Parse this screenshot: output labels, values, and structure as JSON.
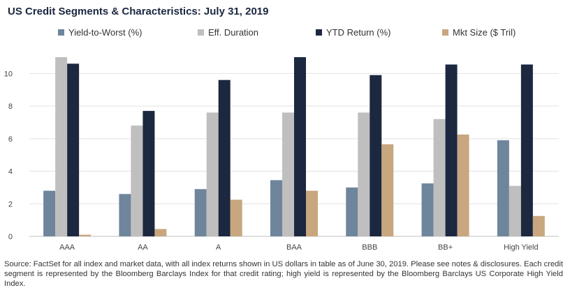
{
  "chart_data": {
    "type": "bar",
    "title": "US Credit Segments & Characteristics: July 31, 2019",
    "xlabel": "",
    "ylabel": "",
    "ylim": [
      0,
      11
    ],
    "yticks": [
      "0",
      "2",
      "4",
      "6",
      "8",
      "10"
    ],
    "grid": true,
    "legend_position": "top",
    "categories": [
      "AAA",
      "AA",
      "A",
      "BAA",
      "BBB",
      "BB+",
      "High Yield"
    ],
    "series": [
      {
        "name": "Yield-to-Worst (%)",
        "color": "#6f859c",
        "values": [
          2.8,
          2.6,
          2.9,
          3.45,
          3.0,
          3.25,
          5.9
        ]
      },
      {
        "name": "Eff. Duration",
        "color": "#bfbfbf",
        "values": [
          11.0,
          6.8,
          7.6,
          7.6,
          7.6,
          7.2,
          3.1
        ]
      },
      {
        "name": "YTD Return (%)",
        "color": "#1c2840",
        "values": [
          10.6,
          7.7,
          9.6,
          11.0,
          9.9,
          10.55,
          10.55
        ]
      },
      {
        "name": "Mkt Size ($ Tril)",
        "color": "#c8a77f",
        "values": [
          0.1,
          0.45,
          2.25,
          2.8,
          5.65,
          6.25,
          1.25
        ]
      }
    ]
  },
  "note": {
    "source": "Source: FactSet for all index and market data, with all index returns shown in US dollars in table as of June 30, 2019. Please see notes & disclosures. Each credit segment is represented by the Bloomberg Barclays Index for that credit rating; high yield is represented by the Bloomberg Barclays US Corporate High Yield Index."
  }
}
